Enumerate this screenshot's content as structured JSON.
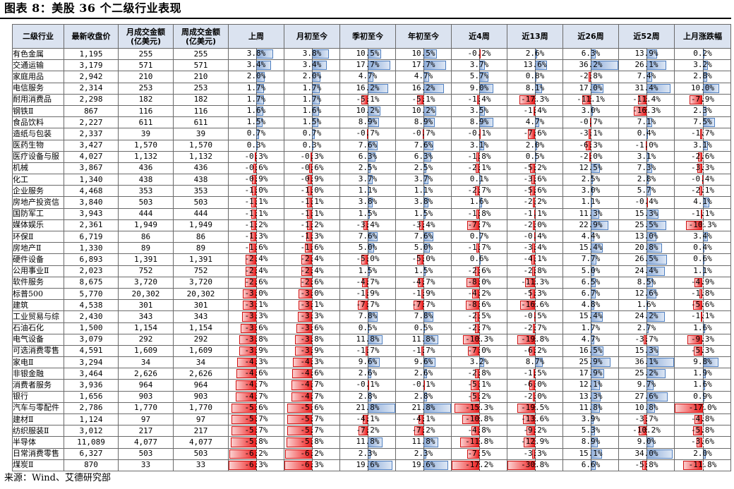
{
  "title": "图表 8：美股 36 个二级行业表现",
  "source": "来源：Wind、艾德研究部",
  "headers": [
    "二级行业",
    "最新收盘价",
    "月成交金额\n(亿美元)",
    "周成交金额\n(亿美元)",
    "上周",
    "月初至今",
    "季初至今",
    "年初至今",
    "近4周",
    "近13周",
    "近26周",
    "近52周",
    "上月涨跌幅"
  ],
  "colors": {
    "header_bg": "#dbe3f0",
    "positive_bar": "#8fadd9",
    "negative_bar": "#ee2222"
  },
  "rows": [
    {
      "name": "有色金属",
      "price": "1,195",
      "m": "255",
      "w": "255",
      "v": [
        3.8,
        3.8,
        10.5,
        10.5,
        -0.2,
        2.6,
        6.3,
        13.9,
        0.2
      ]
    },
    {
      "name": "交通运输",
      "price": "3,179",
      "m": "571",
      "w": "571",
      "v": [
        3.4,
        3.4,
        17.7,
        17.7,
        3.7,
        13.6,
        36.2,
        26.1,
        3.2
      ]
    },
    {
      "name": "家庭用品",
      "price": "2,942",
      "m": "210",
      "w": "210",
      "v": [
        2.0,
        2.0,
        4.7,
        4.7,
        5.7,
        0.8,
        -2.8,
        7.4,
        2.8
      ]
    },
    {
      "name": "电信服务",
      "price": "2,314",
      "m": "253",
      "w": "253",
      "v": [
        1.7,
        1.7,
        16.2,
        16.2,
        9.0,
        8.1,
        17.0,
        31.4,
        10.0
      ]
    },
    {
      "name": "耐用消费品",
      "price": "2,298",
      "m": "182",
      "w": "182",
      "v": [
        1.7,
        1.7,
        -5.1,
        -5.1,
        -1.4,
        -17.3,
        -11.1,
        -11.4,
        -7.9
      ]
    },
    {
      "name": "钢铁Ⅱ",
      "price": "867",
      "m": "116",
      "w": "116",
      "v": [
        1.6,
        1.6,
        10.2,
        10.2,
        3.5,
        -1.4,
        3.0,
        -16.3,
        2.3
      ]
    },
    {
      "name": "食品饮料",
      "price": "2,227",
      "m": "611",
      "w": "611",
      "v": [
        1.5,
        1.5,
        8.9,
        8.9,
        8.9,
        4.7,
        -0.7,
        7.1,
        7.5
      ]
    },
    {
      "name": "造纸与包装",
      "price": "2,337",
      "m": "39",
      "w": "39",
      "v": [
        0.7,
        0.7,
        -0.7,
        -0.7,
        -0.1,
        -7.6,
        -3.1,
        0.4,
        -1.7
      ]
    },
    {
      "name": "医药生物",
      "price": "3,427",
      "m": "1,570",
      "w": "1,570",
      "v": [
        0.3,
        0.3,
        7.6,
        7.6,
        3.1,
        2.0,
        -6.3,
        -1.0,
        3.1
      ]
    },
    {
      "name": "医疗设备与服",
      "price": "4,027",
      "m": "1,132",
      "w": "1,132",
      "v": [
        -0.3,
        -0.3,
        6.3,
        6.3,
        -1.8,
        0.5,
        -2.0,
        3.1,
        -2.6
      ]
    },
    {
      "name": "机械",
      "price": "3,867",
      "m": "436",
      "w": "436",
      "v": [
        -0.6,
        -0.6,
        2.5,
        2.5,
        -2.1,
        -5.2,
        12.5,
        7.3,
        -3.3
      ]
    },
    {
      "name": "化工",
      "price": "1,340",
      "m": "438",
      "w": "438",
      "v": [
        -0.9,
        -0.9,
        3.7,
        3.7,
        0.1,
        -3.6,
        2.5,
        2.8,
        -0.4
      ]
    },
    {
      "name": "企业服务",
      "price": "4,468",
      "m": "353",
      "w": "353",
      "v": [
        -1.0,
        -1.0,
        1.1,
        1.1,
        -2.7,
        -5.6,
        3.0,
        5.7,
        -2.1
      ]
    },
    {
      "name": "房地产投资信",
      "price": "3,840",
      "m": "503",
      "w": "503",
      "v": [
        -1.1,
        -1.1,
        3.8,
        3.8,
        1.6,
        -2.2,
        1.1,
        -0.4,
        4.1
      ]
    },
    {
      "name": "国防军工",
      "price": "3,943",
      "m": "444",
      "w": "444",
      "v": [
        -1.1,
        -1.1,
        1.5,
        1.5,
        -1.8,
        -1.1,
        11.3,
        15.3,
        -1.1
      ]
    },
    {
      "name": "媒体娱乐",
      "price": "2,361",
      "m": "1,949",
      "w": "1,949",
      "v": [
        -1.2,
        -1.2,
        -3.4,
        -3.4,
        -7.7,
        -2.0,
        22.9,
        25.5,
        -10.3
      ]
    },
    {
      "name": "环保Ⅱ",
      "price": "6,719",
      "m": "86",
      "w": "86",
      "v": [
        -1.3,
        -1.3,
        7.6,
        7.6,
        0.7,
        -0.4,
        4.4,
        13.0,
        3.4
      ]
    },
    {
      "name": "房地产Ⅱ",
      "price": "1,330",
      "m": "89",
      "w": "89",
      "v": [
        -1.6,
        -1.6,
        5.0,
        5.0,
        -1.7,
        -3.4,
        15.4,
        20.8,
        0.4
      ]
    },
    {
      "name": "硬件设备",
      "price": "6,893",
      "m": "1,391",
      "w": "1,391",
      "v": [
        -2.4,
        -2.4,
        -5.0,
        -5.0,
        0.6,
        -4.1,
        7.7,
        26.5,
        0.6
      ]
    },
    {
      "name": "公用事业Ⅱ",
      "price": "2,023",
      "m": "752",
      "w": "752",
      "v": [
        -2.4,
        -2.4,
        1.5,
        1.5,
        -2.6,
        -2.8,
        5.0,
        24.4,
        1.1
      ]
    },
    {
      "name": "软件服务",
      "price": "8,675",
      "m": "3,720",
      "w": "3,720",
      "v": [
        -2.6,
        -2.6,
        -4.7,
        -4.7,
        -8.0,
        -11.3,
        6.5,
        8.5,
        -4.9
      ]
    },
    {
      "name": "标普500",
      "price": "5,770",
      "m": "20,302",
      "w": "20,302",
      "v": [
        -3.0,
        -3.0,
        -1.9,
        -1.9,
        -4.2,
        -5.3,
        6.7,
        12.6,
        -1.8
      ]
    },
    {
      "name": "建筑",
      "price": "4,538",
      "m": "301",
      "w": "301",
      "v": [
        -3.1,
        -3.1,
        -7.7,
        -7.7,
        -8.6,
        -16.6,
        4.8,
        1.6,
        -5.6
      ]
    },
    {
      "name": "工业贸易与综",
      "price": "2,430",
      "m": "343",
      "w": "343",
      "v": [
        -3.3,
        -3.3,
        7.8,
        7.8,
        -2.5,
        -0.5,
        15.4,
        24.2,
        -1.1
      ]
    },
    {
      "name": "石油石化",
      "price": "1,500",
      "m": "1,154",
      "w": "1,154",
      "v": [
        -3.6,
        -3.6,
        0.5,
        0.5,
        -2.7,
        -2.7,
        1.7,
        2.7,
        1.6
      ]
    },
    {
      "name": "电气设备",
      "price": "3,079",
      "m": "292",
      "w": "292",
      "v": [
        -3.8,
        -3.8,
        11.8,
        11.8,
        -10.3,
        -19.8,
        4.7,
        -3.7,
        -9.3
      ]
    },
    {
      "name": "可选消费零售",
      "price": "4,591",
      "m": "1,609",
      "w": "1,609",
      "v": [
        -3.9,
        -3.9,
        -1.7,
        -1.7,
        -7.0,
        -6.2,
        16.5,
        15.3,
        -5.3
      ]
    },
    {
      "name": "家电Ⅱ",
      "price": "3,294",
      "m": "34",
      "w": "34",
      "v": [
        -4.3,
        -4.3,
        9.6,
        9.6,
        3.2,
        8.7,
        25.9,
        36.1,
        9.8
      ]
    },
    {
      "name": "非银金融",
      "price": "3,464",
      "m": "2,626",
      "w": "2,626",
      "v": [
        -4.6,
        -4.6,
        2.6,
        2.6,
        -2.8,
        -1.5,
        17.9,
        25.2,
        1.9
      ]
    },
    {
      "name": "消费者服务",
      "price": "3,936",
      "m": "964",
      "w": "964",
      "v": [
        -4.7,
        -4.7,
        -0.1,
        -0.1,
        -5.1,
        -6.0,
        12.1,
        9.7,
        1.6
      ]
    },
    {
      "name": "银行",
      "price": "1,656",
      "m": "903",
      "w": "903",
      "v": [
        -4.7,
        -4.7,
        2.8,
        2.8,
        -5.2,
        -2.0,
        13.3,
        27.6,
        0.9
      ]
    },
    {
      "name": "汽车与零配件",
      "price": "2,786",
      "m": "1,770",
      "w": "1,770",
      "v": [
        -5.6,
        -5.6,
        21.8,
        21.8,
        -15.3,
        -19.5,
        11.8,
        10.8,
        -17.0
      ]
    },
    {
      "name": "建材Ⅱ",
      "price": "1,124",
      "m": "97",
      "w": "97",
      "v": [
        -5.7,
        -5.7,
        -4.1,
        -4.1,
        -10.8,
        -13.6,
        3.9,
        -3.7,
        -4.8
      ]
    },
    {
      "name": "纺织服装Ⅱ",
      "price": "3,012",
      "m": "217",
      "w": "217",
      "v": [
        -5.7,
        -5.7,
        -7.2,
        -7.2,
        -4.8,
        -9.2,
        5.3,
        -10.2,
        -5.8
      ]
    },
    {
      "name": "半导体",
      "price": "11,089",
      "m": "4,077",
      "w": "4,077",
      "v": [
        -5.8,
        -5.8,
        11.8,
        11.8,
        -11.8,
        -12.9,
        8.9,
        9.0,
        -3.6
      ]
    },
    {
      "name": "日常消费零售",
      "price": "6,327",
      "m": "503",
      "w": "503",
      "v": [
        -6.2,
        -6.2,
        2.3,
        2.3,
        -7.5,
        -3.3,
        15.1,
        34.0,
        2.0
      ]
    },
    {
      "name": "煤炭Ⅱ",
      "price": "870",
      "m": "33",
      "w": "33",
      "v": [
        -6.3,
        -6.3,
        19.6,
        19.6,
        -17.2,
        -30.8,
        6.6,
        -5.8,
        -11.8
      ]
    }
  ]
}
